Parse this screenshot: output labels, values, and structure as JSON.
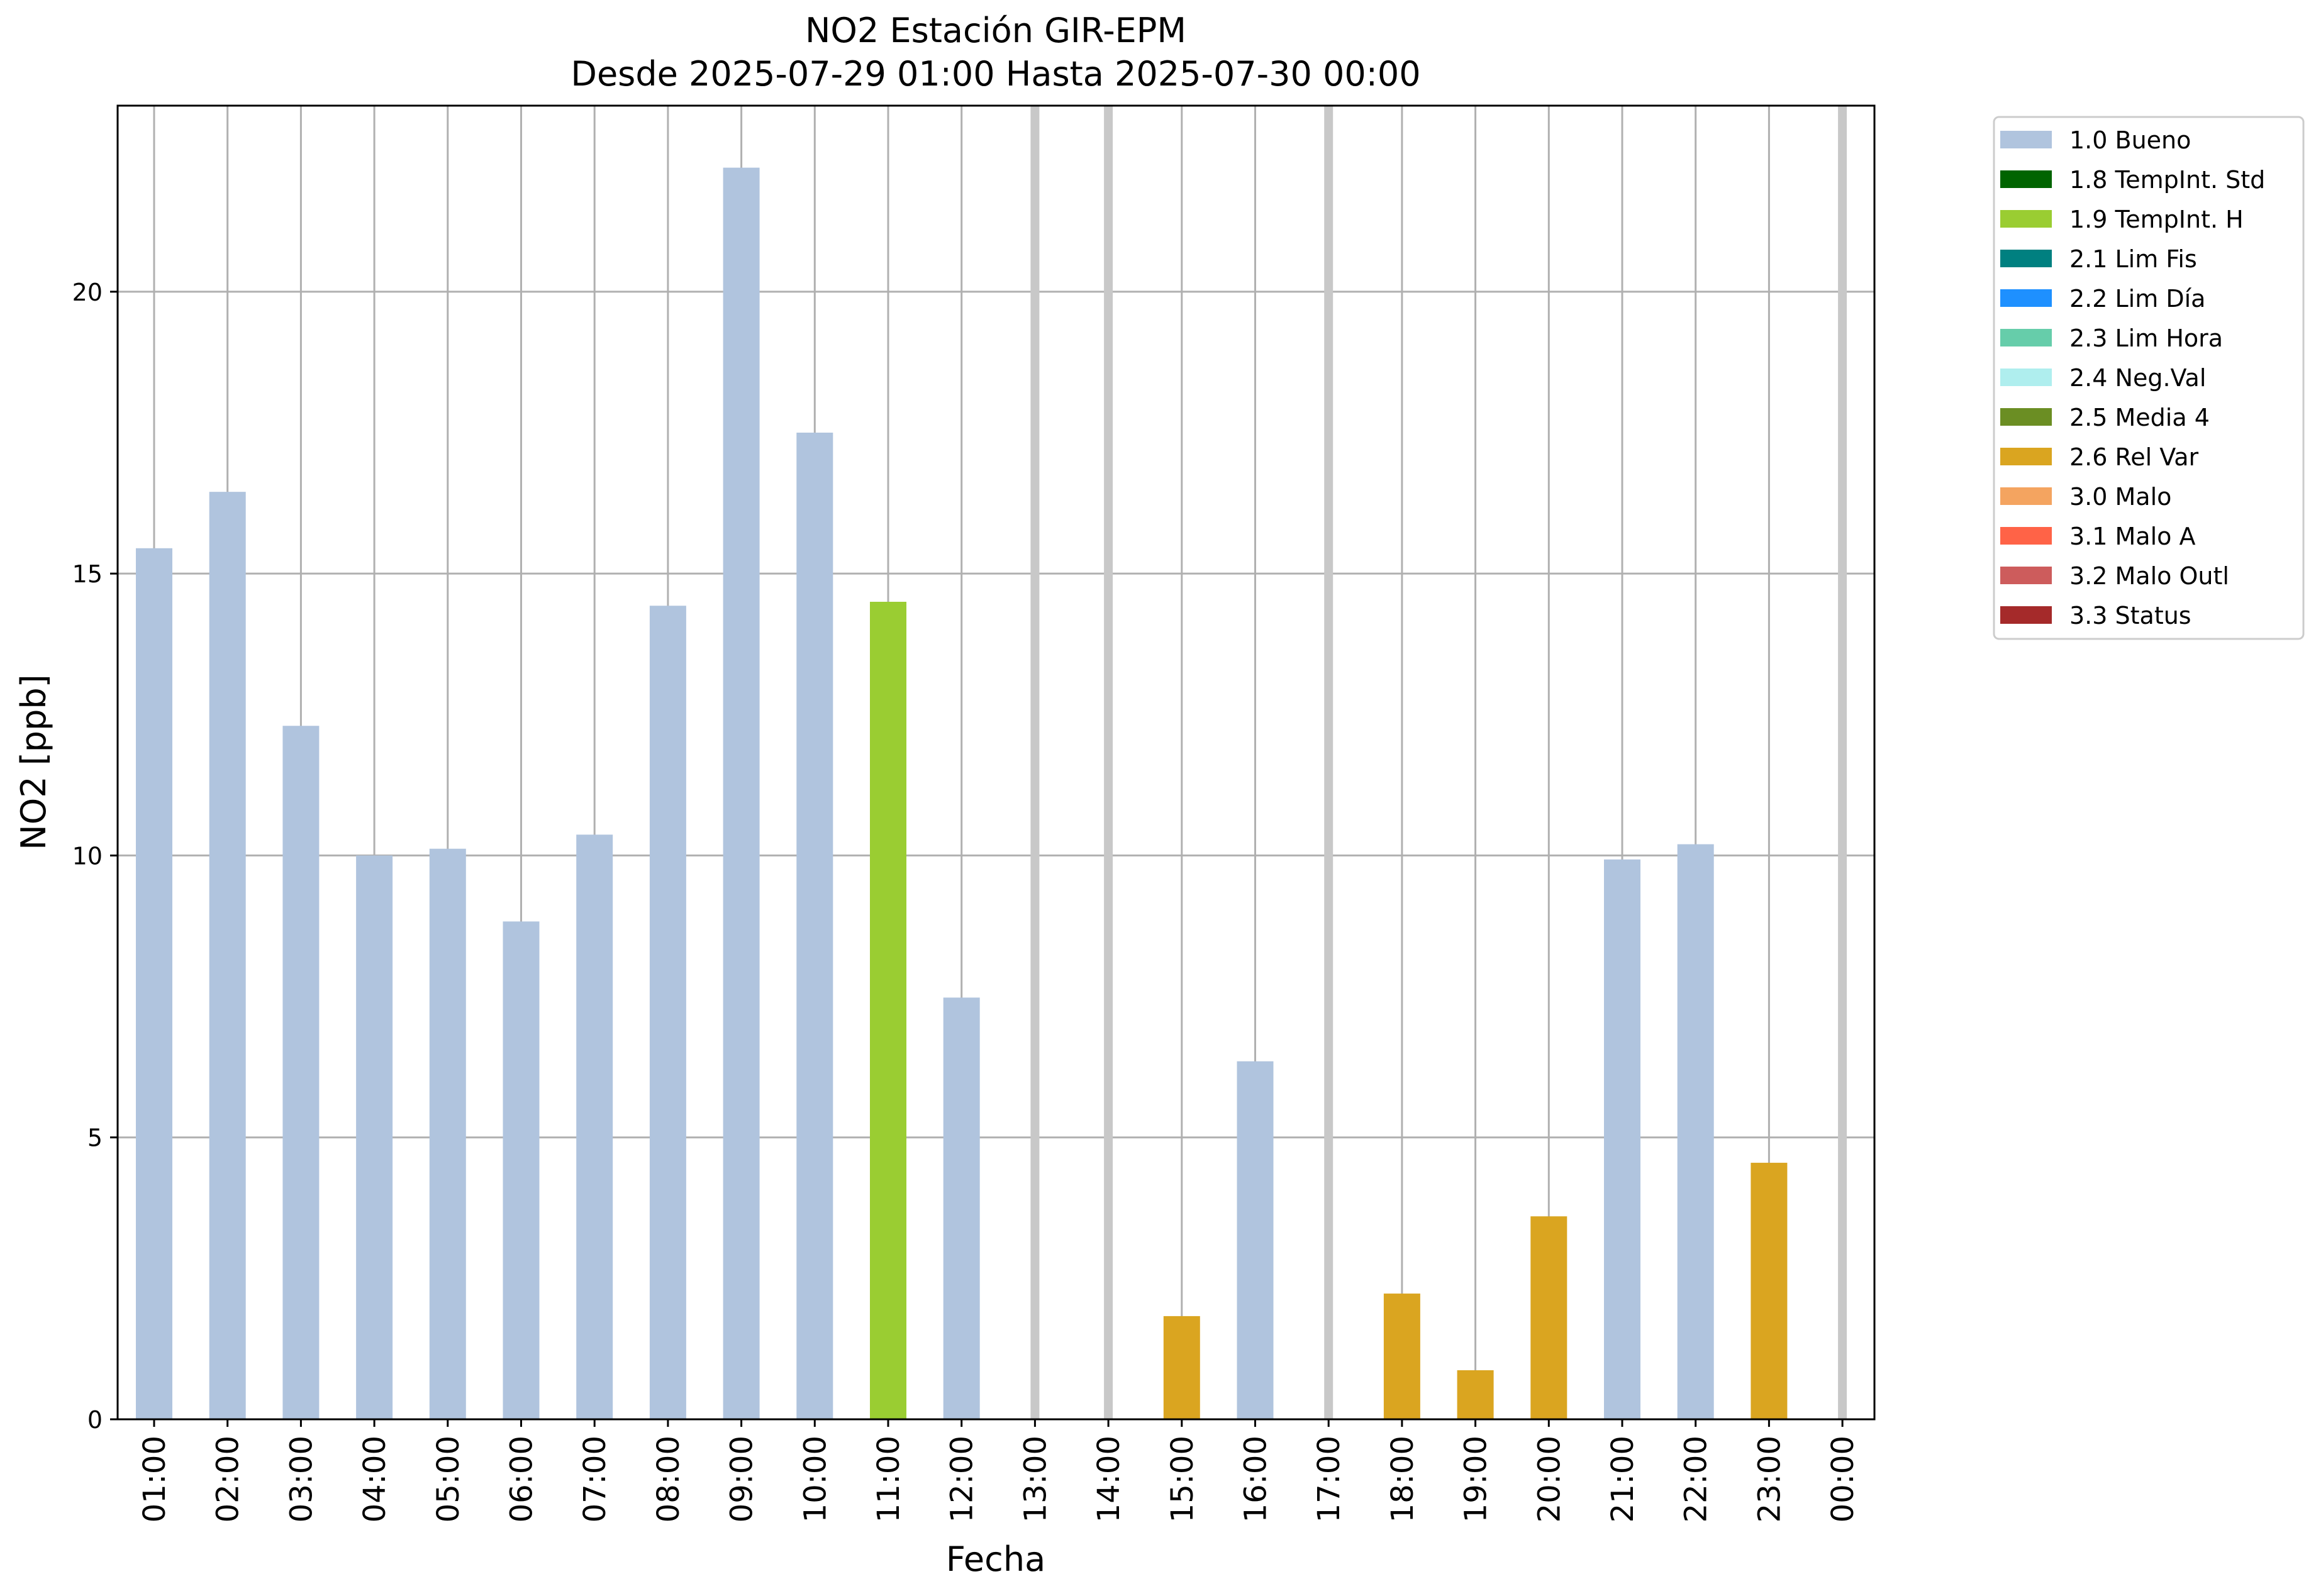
{
  "chart_data": {
    "type": "bar",
    "title": "NO2 Estación GIR-EPM",
    "subtitle": "Desde 2025-07-29 01:00 Hasta 2025-07-30 00:00",
    "xlabel": "Fecha",
    "ylabel": "NO2 [ppb]",
    "ylim": [
      0,
      23.3
    ],
    "yticks": [
      0,
      5,
      10,
      15,
      20
    ],
    "grid": true,
    "legend_position": "outside-top-right",
    "categories": [
      "01:00",
      "02:00",
      "03:00",
      "04:00",
      "05:00",
      "06:00",
      "07:00",
      "08:00",
      "09:00",
      "10:00",
      "11:00",
      "12:00",
      "13:00",
      "14:00",
      "15:00",
      "16:00",
      "17:00",
      "18:00",
      "19:00",
      "20:00",
      "21:00",
      "22:00",
      "23:00",
      "00:00"
    ],
    "values": [
      15.45,
      16.45,
      12.3,
      10.0,
      10.12,
      8.83,
      10.37,
      14.43,
      22.2,
      17.5,
      14.5,
      7.48,
      null,
      null,
      1.83,
      6.35,
      null,
      2.23,
      0.87,
      3.6,
      9.93,
      10.2,
      4.55,
      null
    ],
    "flags": [
      "1.0",
      "1.0",
      "1.0",
      "1.0",
      "1.0",
      "1.0",
      "1.0",
      "1.0",
      "1.0",
      "1.0",
      "1.9",
      "1.0",
      null,
      null,
      "2.6",
      "1.0",
      null,
      "2.6",
      "2.6",
      "2.6",
      "1.0",
      "1.0",
      "2.6",
      null
    ],
    "missing_markers": [
      "13:00",
      "14:00",
      "17:00",
      "00:00"
    ],
    "missing_color": "#c8c8c8",
    "legend": [
      {
        "code": "1.0",
        "label": "1.0 Bueno",
        "color": "#b0c4de"
      },
      {
        "code": "1.8",
        "label": "1.8 TempInt. Std",
        "color": "#006400"
      },
      {
        "code": "1.9",
        "label": "1.9 TempInt. H",
        "color": "#9acd32"
      },
      {
        "code": "2.1",
        "label": "2.1 Lim Fis",
        "color": "#008080"
      },
      {
        "code": "2.2",
        "label": "2.2 Lim Día",
        "color": "#1e90ff"
      },
      {
        "code": "2.3",
        "label": "2.3 Lim Hora",
        "color": "#66cdaa"
      },
      {
        "code": "2.4",
        "label": "2.4 Neg.Val",
        "color": "#afeeee"
      },
      {
        "code": "2.5",
        "label": "2.5 Media 4",
        "color": "#6b8e23"
      },
      {
        "code": "2.6",
        "label": "2.6 Rel Var",
        "color": "#daa520"
      },
      {
        "code": "3.0",
        "label": "3.0 Malo",
        "color": "#f4a460"
      },
      {
        "code": "3.1",
        "label": "3.1 Malo A",
        "color": "#ff6347"
      },
      {
        "code": "3.2",
        "label": "3.2 Malo Outl",
        "color": "#cd5c5c"
      },
      {
        "code": "3.3",
        "label": "3.3 Status",
        "color": "#a52a2a"
      }
    ]
  }
}
